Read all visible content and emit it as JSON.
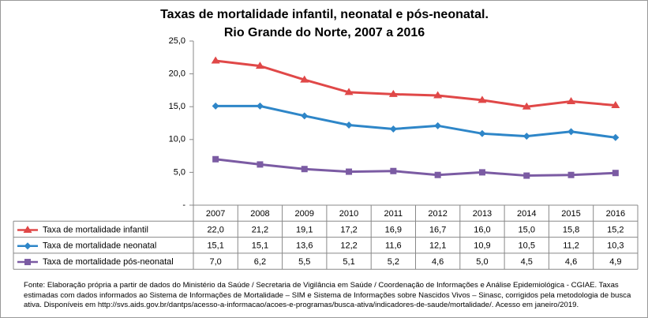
{
  "chart_data": {
    "type": "line",
    "title": "Taxas de mortalidade infantil, neonatal e pós-neonatal.",
    "subtitle": "Rio Grande do Norte, 2007 a 2016",
    "categories": [
      "2007",
      "2008",
      "2009",
      "2010",
      "2011",
      "2012",
      "2013",
      "2014",
      "2015",
      "2016"
    ],
    "series": [
      {
        "name": "Taxa de mortalidade infantil",
        "color": "#e04848",
        "marker": "triangle",
        "values": [
          22.0,
          21.2,
          19.1,
          17.2,
          16.9,
          16.7,
          16.0,
          15.0,
          15.8,
          15.2
        ],
        "value_labels": [
          "22,0",
          "21,2",
          "19,1",
          "17,2",
          "16,9",
          "16,7",
          "16,0",
          "15,0",
          "15,8",
          "15,2"
        ]
      },
      {
        "name": "Taxa de mortalidade neonatal",
        "color": "#2e86c8",
        "marker": "diamond",
        "values": [
          15.1,
          15.1,
          13.6,
          12.2,
          11.6,
          12.1,
          10.9,
          10.5,
          11.2,
          10.3
        ],
        "value_labels": [
          "15,1",
          "15,1",
          "13,6",
          "12,2",
          "11,6",
          "12,1",
          "10,9",
          "10,5",
          "11,2",
          "10,3"
        ]
      },
      {
        "name": "Taxa de mortalidade pós-neonatal",
        "color": "#7b5ba3",
        "marker": "square",
        "values": [
          7.0,
          6.2,
          5.5,
          5.1,
          5.2,
          4.6,
          5.0,
          4.5,
          4.6,
          4.9
        ],
        "value_labels": [
          "7,0",
          "6,2",
          "5,5",
          "5,1",
          "5,2",
          "4,6",
          "5,0",
          "4,5",
          "4,6",
          "4,9"
        ]
      }
    ],
    "ylim": [
      0,
      25
    ],
    "yticks": [
      {
        "value": 0,
        "label": "-"
      },
      {
        "value": 5,
        "label": "5,0"
      },
      {
        "value": 10,
        "label": "10,0"
      },
      {
        "value": 15,
        "label": "15,0"
      },
      {
        "value": 20,
        "label": "20,0"
      },
      {
        "value": 25,
        "label": "25,0"
      }
    ],
    "grid": false,
    "note": "Fonte: Elaboração própria a partir de dados do Ministério da Saúde / Secretaria de Vigilância em Saúde / Coordenação de Informações e Análise Epidemiológica - CGIAE.  Taxas estimadas com dados informados ao Sistema de Informações de Mortalidade – SIM e Sistema de Informações sobre Nascidos Vivos – Sinasc, corrigidos pela metodologia de busca ativa. Disponíveis em http://svs.aids.gov.br/dantps/acesso-a-informacao/acoes-e-programas/busca-ativa/indicadores-de-saude/mortalidade/. Acesso em janeiro/2019."
  }
}
